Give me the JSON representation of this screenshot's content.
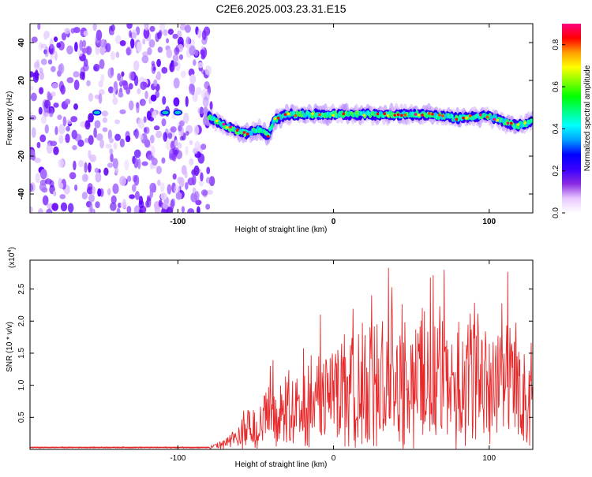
{
  "title": "C2E6.2025.003.23.31.E15",
  "chart_data": [
    {
      "type": "heatmap",
      "xlabel": "Height of straight line (km)",
      "ylabel": "Frequency (Hz)",
      "xlim": [
        -195,
        128
      ],
      "ylim": [
        -50,
        50
      ],
      "x_ticks": [
        -100,
        0,
        100
      ],
      "y_ticks": [
        -40,
        -20,
        0,
        20,
        40
      ],
      "colorbar": {
        "label": "Normalized spectral amplitude",
        "range": [
          0.0,
          0.9
        ],
        "ticks": [
          0.0,
          0.2,
          0.4,
          0.6,
          0.8
        ],
        "colors": [
          "#ffffff",
          "#e8c8ff",
          "#8a2be2",
          "#3a00ff",
          "#0000ff",
          "#00a0ff",
          "#00ffff",
          "#00ff80",
          "#00ff00",
          "#80ff00",
          "#ffff00",
          "#ffa000",
          "#ff0000",
          "#ff0080"
        ]
      },
      "noise_region_x": [
        -195,
        -78
      ],
      "ridge": [
        {
          "x": -152,
          "y": 3
        },
        {
          "x": -108,
          "y": 3
        },
        {
          "x": -98,
          "y": 3
        },
        {
          "x": -88,
          "y": 3
        },
        {
          "x": -80,
          "y": 1
        },
        {
          "x": -72,
          "y": -3
        },
        {
          "x": -64,
          "y": -6
        },
        {
          "x": -56,
          "y": -8
        },
        {
          "x": -48,
          "y": -6
        },
        {
          "x": -42,
          "y": -9
        },
        {
          "x": -38,
          "y": -1
        },
        {
          "x": -30,
          "y": 2
        },
        {
          "x": -20,
          "y": 2
        },
        {
          "x": -10,
          "y": 2
        },
        {
          "x": 0,
          "y": 2
        },
        {
          "x": 10,
          "y": 2
        },
        {
          "x": 20,
          "y": 2
        },
        {
          "x": 30,
          "y": 2
        },
        {
          "x": 40,
          "y": 2
        },
        {
          "x": 50,
          "y": 2
        },
        {
          "x": 60,
          "y": 2
        },
        {
          "x": 70,
          "y": 1
        },
        {
          "x": 80,
          "y": 0
        },
        {
          "x": 90,
          "y": 1
        },
        {
          "x": 100,
          "y": 1
        },
        {
          "x": 110,
          "y": -2
        },
        {
          "x": 118,
          "y": -4
        },
        {
          "x": 126,
          "y": -2
        }
      ]
    },
    {
      "type": "line",
      "xlabel": "Height of straight line (km)",
      "ylabel": "SNR (10 * v/v)",
      "y_multiplier": "(x10",
      "y_multiplier_exp": "4",
      "y_multiplier_close": ")",
      "xlim": [
        -195,
        128
      ],
      "ylim": [
        0,
        2.95
      ],
      "x_ticks": [
        -100,
        0,
        100
      ],
      "y_ticks": [
        "0.5",
        "1.0",
        "1.5",
        "2.0",
        "2.5"
      ],
      "color": "#e8292b",
      "series": [
        {
          "x": [
            -195,
            -80,
            -70,
            -60,
            -55,
            -50,
            -45,
            -40,
            -35,
            -30,
            -25,
            -20,
            -15,
            -10,
            -5,
            0,
            10,
            20,
            25,
            30,
            35,
            40,
            45,
            50,
            55,
            60,
            65,
            70,
            75,
            80,
            85,
            90,
            95,
            100,
            105,
            110,
            115,
            120,
            125,
            128
          ],
          "values": [
            0.02,
            0.03,
            0.1,
            0.25,
            0.6,
            0.35,
            0.55,
            0.7,
            0.6,
            0.9,
            0.75,
            1.05,
            0.9,
            1.0,
            0.95,
            1.1,
            1.2,
            1.3,
            1.4,
            1.3,
            1.5,
            1.4,
            1.3,
            1.2,
            1.4,
            1.5,
            1.35,
            1.3,
            1.2,
            1.3,
            1.4,
            1.5,
            1.3,
            1.2,
            1.4,
            1.25,
            1.3,
            1.1,
            0.9,
            1.2
          ]
        }
      ]
    }
  ]
}
